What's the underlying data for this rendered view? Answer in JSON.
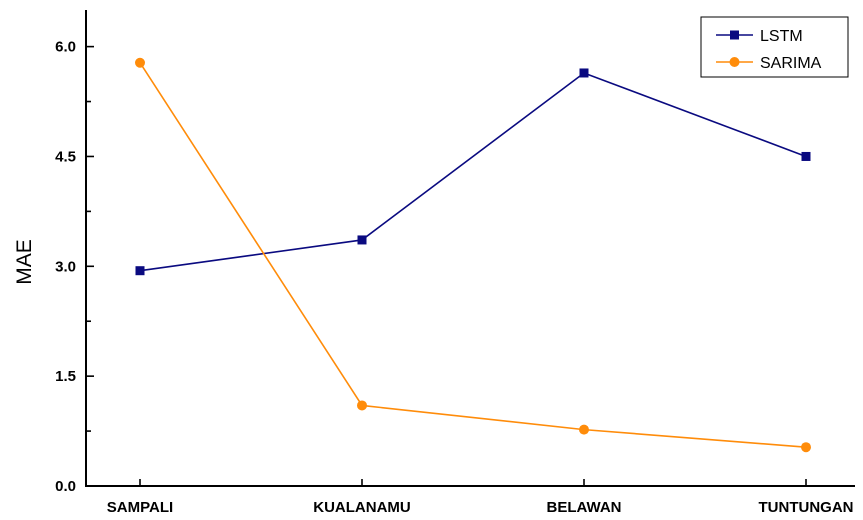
{
  "chart_data": {
    "type": "line",
    "categories": [
      "SAMPALI",
      "KUALANAMU",
      "BELAWAN",
      "TUNTUNGAN"
    ],
    "series": [
      {
        "name": "LSTM",
        "values": [
          2.94,
          3.36,
          5.64,
          4.5
        ],
        "color": "#0a0a80",
        "marker": "square"
      },
      {
        "name": "SARIMA",
        "values": [
          5.78,
          1.1,
          0.77,
          0.53
        ],
        "color": "#ff8c0a",
        "marker": "circle"
      }
    ],
    "title": "",
    "xlabel": "",
    "ylabel": "MAE",
    "ylim": [
      0,
      6.5
    ],
    "yticks": [
      {
        "value": 0,
        "label": "0.0"
      },
      {
        "value": 1.5,
        "label": "1.5"
      },
      {
        "value": 3,
        "label": "3.0"
      },
      {
        "value": 4.5,
        "label": "4.5"
      },
      {
        "value": 6,
        "label": "6.0"
      }
    ],
    "yminor_step": 0.75,
    "grid": false,
    "legend_position": "top-right"
  }
}
